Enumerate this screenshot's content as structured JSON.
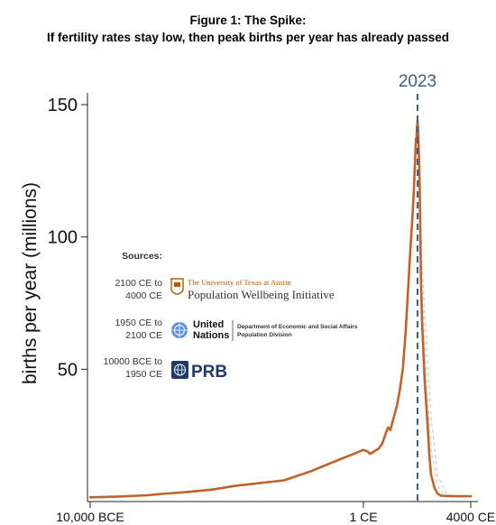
{
  "figure": {
    "title": "Figure 1: The Spike:",
    "subtitle": "If fertility rates stay low, then peak births per year has already passed"
  },
  "chart_data": {
    "type": "line",
    "title": "Figure 1: The Spike:",
    "subtitle": "If fertility rates stay low, then peak births per year has already passed",
    "xlabel": "",
    "ylabel": "births per year (millions)",
    "x_tick_labels": [
      "10,000 BCE",
      "1 CE",
      "4000 CE"
    ],
    "y_ticks": [
      50,
      100,
      150
    ],
    "ylim": [
      0,
      155
    ],
    "annotation": {
      "label": "2023",
      "x": 2023,
      "style": "dashed vertical line",
      "color": "#3b5f8a"
    },
    "series": [
      {
        "color": "#c0622b",
        "points": [
          [
            -10000,
            1.6
          ],
          [
            -8000,
            1.9
          ],
          [
            -6000,
            2.4
          ],
          [
            -5000,
            2.9
          ],
          [
            -4000,
            3.6
          ],
          [
            -3000,
            4.5
          ],
          [
            -2000,
            6.0
          ],
          [
            -1000,
            8.0
          ],
          [
            -500,
            11.5
          ],
          [
            -200,
            15.0
          ],
          [
            1,
            19.5
          ],
          [
            150,
            19.0
          ],
          [
            250,
            18.0
          ],
          [
            400,
            19.0
          ],
          [
            600,
            20.0
          ],
          [
            800,
            22.0
          ],
          [
            1000,
            26.0
          ],
          [
            1100,
            28.0
          ],
          [
            1200,
            27.0
          ],
          [
            1300,
            30.0
          ],
          [
            1400,
            33.0
          ],
          [
            1500,
            36.0
          ],
          [
            1600,
            42.0
          ],
          [
            1700,
            50.0
          ],
          [
            1800,
            65.0
          ],
          [
            1850,
            80.0
          ],
          [
            1900,
            95.0
          ],
          [
            1930,
            108.0
          ],
          [
            1950,
            118.0
          ],
          [
            1965,
            125.0
          ],
          [
            1975,
            130.0
          ],
          [
            1990,
            137.0
          ],
          [
            2000,
            136.0
          ],
          [
            2010,
            141.0
          ],
          [
            2023,
            144.0
          ],
          [
            2030,
            141.0
          ],
          [
            2040,
            136.0
          ],
          [
            2050,
            128.0
          ],
          [
            2060,
            118.0
          ],
          [
            2070,
            100.0
          ],
          [
            2080,
            85.0
          ],
          [
            2100,
            68.0
          ],
          [
            2150,
            45.0
          ],
          [
            2200,
            30.0
          ],
          [
            2250,
            18.0
          ],
          [
            2300,
            10.0
          ],
          [
            2400,
            5.0
          ],
          [
            2500,
            3.0
          ],
          [
            2600,
            2.2
          ],
          [
            3000,
            2.0
          ],
          [
            4000,
            2.0
          ]
        ]
      }
    ],
    "scenario_lines": {
      "color": "#cccccc",
      "style": "dashed",
      "series": [
        [
          [
            2023,
            144.0
          ],
          [
            2060,
            122.0
          ],
          [
            2100,
            80.0
          ],
          [
            2200,
            40.0
          ],
          [
            2300,
            20.0
          ],
          [
            2500,
            6.0
          ],
          [
            2700,
            2.5
          ],
          [
            3000,
            2.0
          ]
        ],
        [
          [
            2023,
            144.0
          ],
          [
            2060,
            124.0
          ],
          [
            2100,
            90.0
          ],
          [
            2200,
            55.0
          ],
          [
            2300,
            32.0
          ],
          [
            2500,
            10.0
          ],
          [
            2800,
            3.0
          ],
          [
            3200,
            2.0
          ]
        ]
      ]
    }
  },
  "sources": {
    "heading": "Sources:",
    "items": [
      {
        "range": [
          "2100 CE to",
          "4000 CE"
        ],
        "org_small": "The University of Texas at Austin",
        "org_large": "Population Wellbeing Initiative",
        "icon": "ut-austin-seal-icon"
      },
      {
        "range": [
          "1950 CE to",
          "2100 CE"
        ],
        "org_large": [
          "United",
          "Nations"
        ],
        "org_small": [
          "Department of Economic and Social Affairs",
          "Population Division"
        ],
        "icon": "un-emblem-icon"
      },
      {
        "range": [
          "10000 BCE to",
          "1950 CE"
        ],
        "org_large": "PRB",
        "icon": "prb-globe-icon"
      }
    ]
  }
}
